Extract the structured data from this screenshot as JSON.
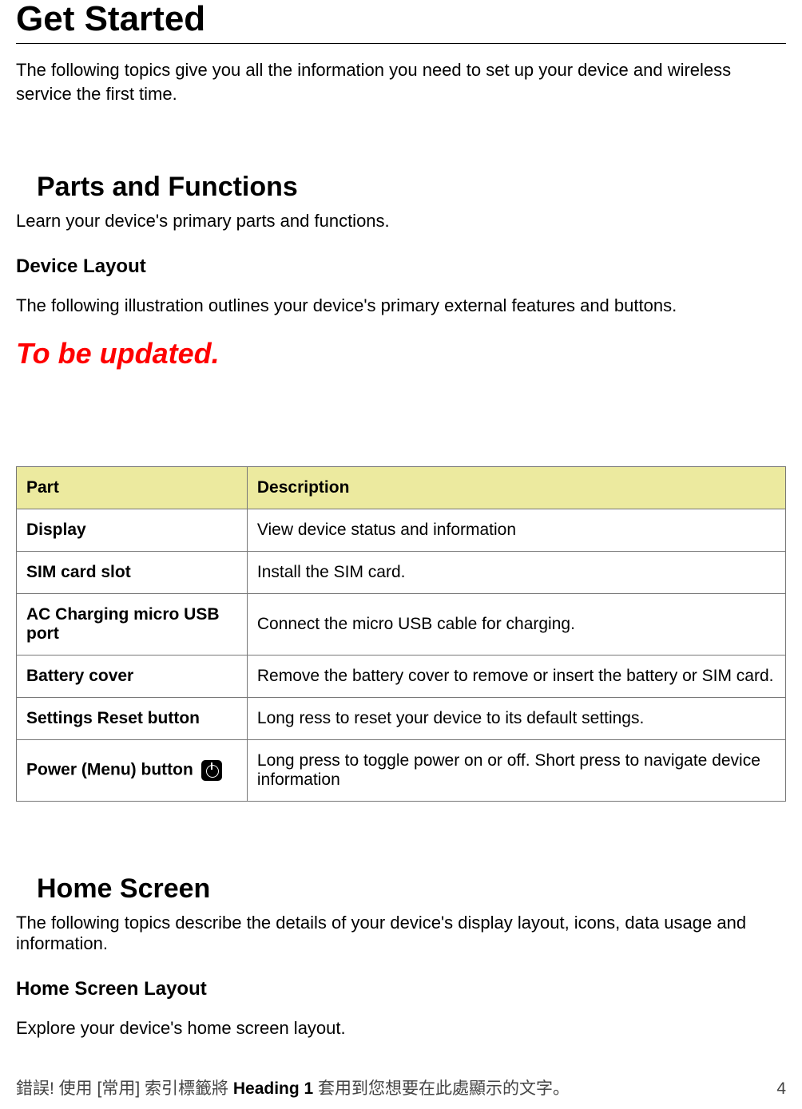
{
  "page_title": "Get Started",
  "intro_text": "The following topics give you all the information you need to set up your device and wireless service the first time.",
  "sections": {
    "parts": {
      "heading": "Parts and Functions",
      "intro": "Learn your device's primary parts and functions.",
      "device_layout": {
        "heading": "Device Layout",
        "text": "The following illustration outlines your device's primary external features and buttons."
      },
      "tbu": "To be updated."
    },
    "home": {
      "heading": "Home Screen",
      "intro": "The following topics describe the details of your device's display layout, icons, data usage and information.",
      "layout": {
        "heading": "Home Screen Layout",
        "text": "Explore your device's home screen layout."
      }
    }
  },
  "parts_table": {
    "header_bg": "#ecea9f",
    "border_color": "#777777",
    "columns": [
      "Part",
      "Description"
    ],
    "rows": [
      {
        "part": "Display",
        "desc": "View device status and information",
        "icon": null
      },
      {
        "part": "SIM card slot",
        "desc": "Install the SIM card.",
        "icon": null
      },
      {
        "part": "AC Charging micro USB port",
        "desc": "Connect the micro USB cable for charging.",
        "icon": null
      },
      {
        "part": "Battery cover",
        "desc": "Remove the battery cover to remove or insert the battery or SIM card.",
        "icon": null
      },
      {
        "part": "Settings Reset button",
        "desc": "Long ress to reset your device to its default settings.",
        "icon": null
      },
      {
        "part": "Power (Menu) button",
        "desc": "Long press to toggle power on or off. Short press to navigate device information",
        "icon": "power-icon"
      }
    ]
  },
  "footer": {
    "left_prefix": "錯誤! 使用 [常用] 索引標籤將 ",
    "left_bold": "Heading 1",
    "left_suffix": " 套用到您想要在此處顯示的文字。",
    "page_number": "4"
  },
  "colors": {
    "tbu_red": "#ff0000",
    "text": "#000000",
    "footer_gray": "#444444"
  },
  "fonts": {
    "heading_family": "Arial Black / Arial Bold",
    "body_family": "Arial",
    "body_size_pt": 16,
    "h1_size_pt": 33,
    "h2_size_pt": 26,
    "h3_size_pt": 18,
    "tbu_size_pt": 27
  }
}
